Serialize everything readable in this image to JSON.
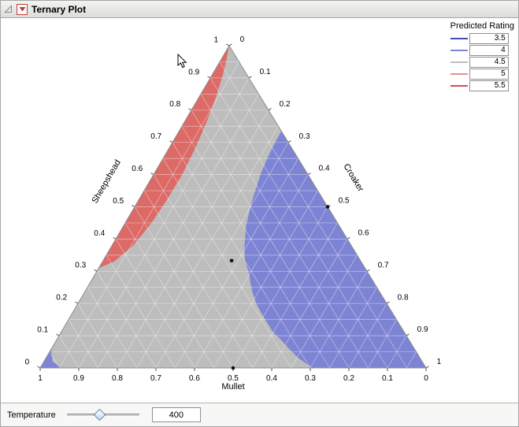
{
  "window": {
    "title": "Ternary Plot"
  },
  "chart_data": {
    "type": "ternary-contour",
    "axes": {
      "left_axis": "Sheepshead",
      "right_axis": "Croaker",
      "bottom_axis": "Mullet"
    },
    "ticks": [
      "0",
      "0.1",
      "0.2",
      "0.3",
      "0.4",
      "0.5",
      "0.6",
      "0.7",
      "0.8",
      "0.9",
      "1"
    ],
    "grid_step": 0.05,
    "base_fill": "#bdbdbd",
    "outline_color": "#8c8c8c",
    "grid_color": "rgba(255,255,255,0.5)",
    "legend": {
      "title": "Predicted Rating",
      "entries": [
        {
          "label": "3.5",
          "color": "#3a4fc4"
        },
        {
          "label": "4",
          "color": "#7d84d4"
        },
        {
          "label": "4.5",
          "color": "#bdbdbd"
        },
        {
          "label": "5",
          "color": "#e2918f"
        },
        {
          "label": "5.5",
          "color": "#d2504c"
        }
      ]
    },
    "regions": [
      {
        "name": "predicted-4-region",
        "color": "#7d84d4",
        "points": [
          [
            0.735,
            0.265
          ],
          [
            0,
            1
          ],
          [
            0,
            0.705
          ],
          [
            0.03,
            0.655
          ],
          [
            0.06,
            0.615
          ],
          [
            0.09,
            0.578
          ],
          [
            0.11,
            0.55
          ],
          [
            0.14,
            0.52
          ],
          [
            0.17,
            0.49
          ],
          [
            0.2,
            0.462
          ],
          [
            0.235,
            0.435
          ],
          [
            0.265,
            0.415
          ],
          [
            0.29,
            0.4
          ],
          [
            0.333,
            0.368
          ],
          [
            0.37,
            0.348
          ],
          [
            0.4,
            0.335
          ],
          [
            0.44,
            0.318
          ],
          [
            0.48,
            0.306
          ],
          [
            0.52,
            0.295
          ],
          [
            0.55,
            0.288
          ],
          [
            0.6,
            0.277
          ],
          [
            0.65,
            0.27
          ],
          [
            0.7,
            0.266
          ]
        ]
      },
      {
        "name": "predicted-4-corner-region",
        "color": "#7d84d4",
        "points": [
          [
            0.059,
            0
          ],
          [
            0,
            0
          ],
          [
            0,
            0.055
          ],
          [
            0.02,
            0.022
          ]
        ]
      },
      {
        "name": "predicted-5-region",
        "color": "#dc6b67",
        "points": [
          [
            1,
            0
          ],
          [
            0.31,
            0
          ],
          [
            0.33,
            0.03
          ],
          [
            0.38,
            0.055
          ],
          [
            0.45,
            0.068
          ],
          [
            0.52,
            0.073
          ],
          [
            0.6,
            0.074
          ],
          [
            0.68,
            0.068
          ],
          [
            0.76,
            0.058
          ],
          [
            0.84,
            0.044
          ],
          [
            0.91,
            0.028
          ],
          [
            0.96,
            0.013
          ]
        ]
      }
    ],
    "points": [
      [
        0.333,
        0.333,
        0.334
      ],
      [
        0,
        0.5,
        0.5
      ],
      [
        0.5,
        0.5,
        0
      ]
    ]
  },
  "controls": {
    "temperature_label": "Temperature",
    "temperature_value": "400"
  }
}
